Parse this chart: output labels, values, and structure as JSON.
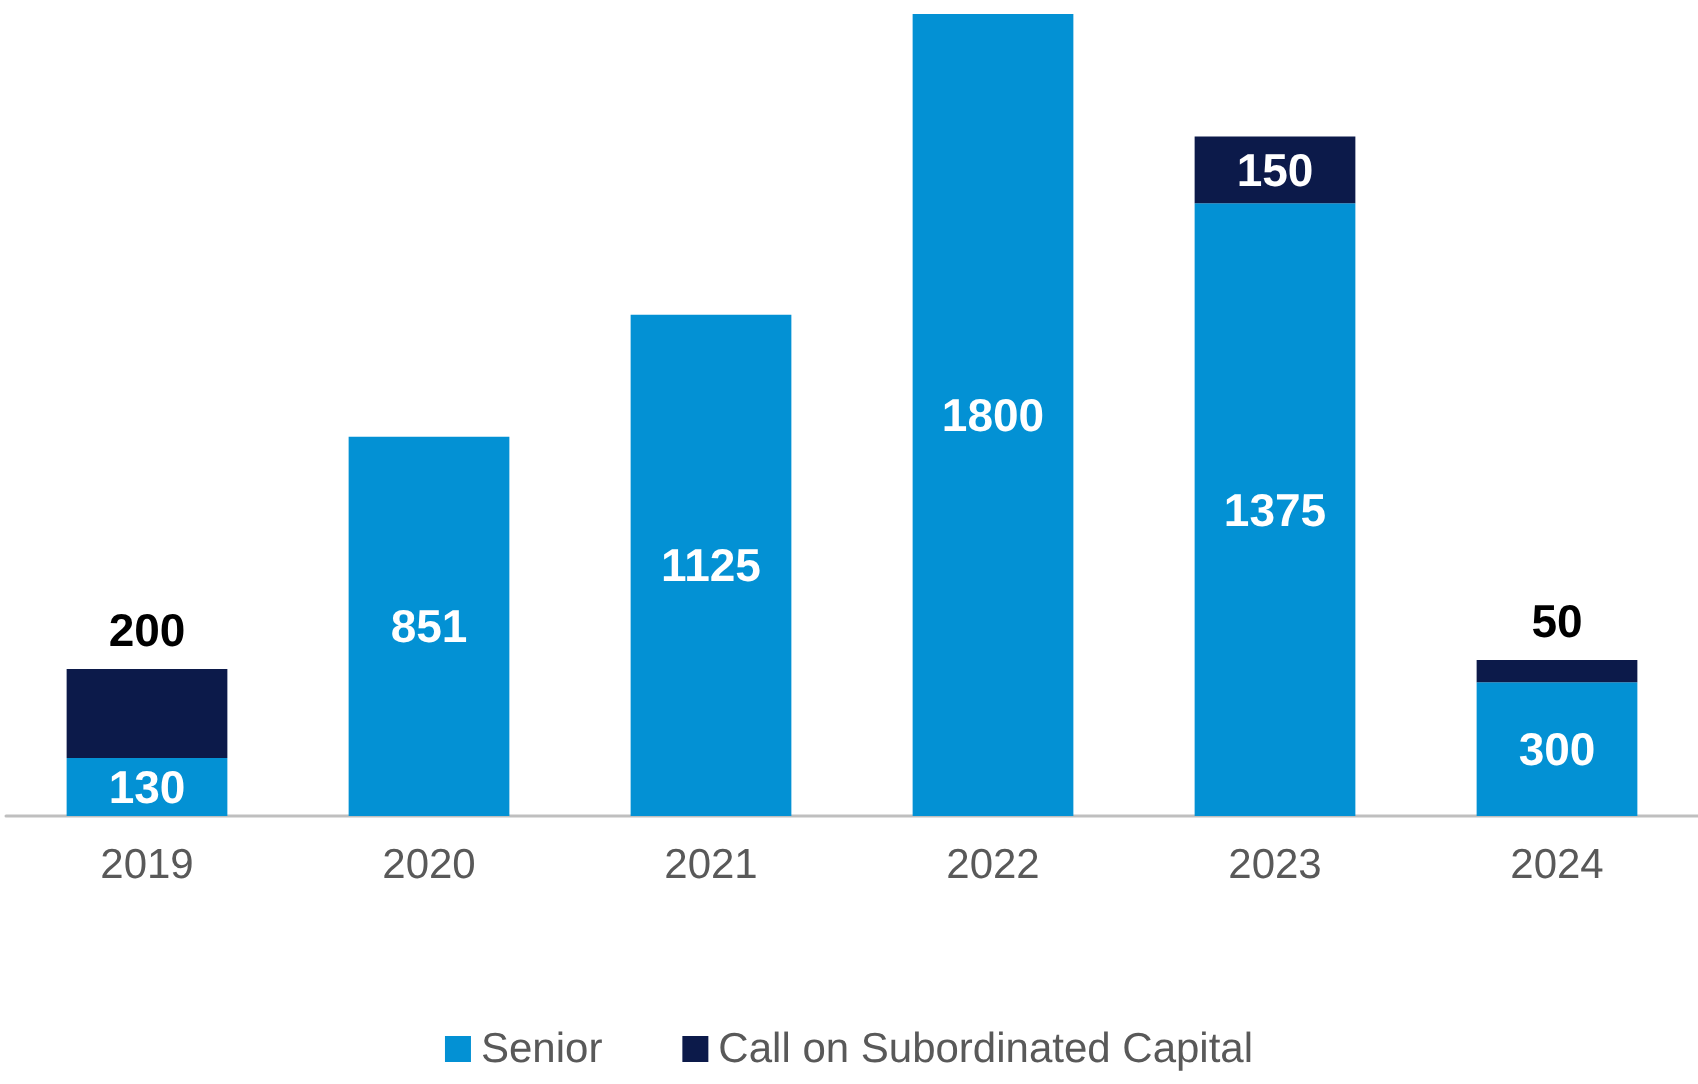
{
  "chart_data": {
    "type": "bar",
    "stacked": true,
    "data_labels": true,
    "legend": "bottom",
    "categories": [
      "2019",
      "2020",
      "2021",
      "2022",
      "2023",
      "2024"
    ],
    "series": [
      {
        "name": "Senior",
        "color": "#0391d4",
        "values": [
          130,
          851,
          1125,
          1800,
          1375,
          300
        ]
      },
      {
        "name": "Call on Subordinated Capital",
        "color": "#0c1a4a",
        "values": [
          200,
          null,
          null,
          null,
          150,
          50
        ]
      }
    ]
  }
}
